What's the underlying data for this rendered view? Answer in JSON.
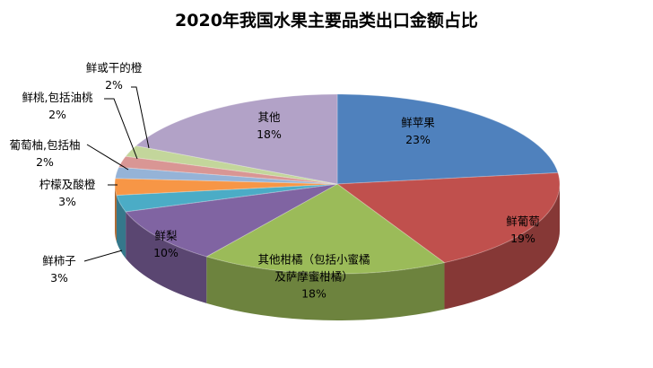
{
  "chart_data": {
    "type": "pie",
    "style": "3d-pie",
    "title": "2020年我国水果主要品类出口金额占比",
    "legend": "none",
    "slices": [
      {
        "name": "鲜苹果",
        "value": 23,
        "label": "23%",
        "color": "#4f81bd"
      },
      {
        "name": "鲜葡萄",
        "value": 19,
        "label": "19%",
        "color": "#c0504d"
      },
      {
        "name": "其他柑橘（包括小蜜橘及萨摩蜜柑橘）",
        "value": 18,
        "label": "18%",
        "color": "#9bbb59"
      },
      {
        "name": "鲜梨",
        "value": 10,
        "label": "10%",
        "color": "#8064a2"
      },
      {
        "name": "鲜柿子",
        "value": 3,
        "label": "3%",
        "color": "#4bacc6"
      },
      {
        "name": "柠檬及酸橙",
        "value": 3,
        "label": "3%",
        "color": "#f79646"
      },
      {
        "name": "葡萄柚,包括柚",
        "value": 2,
        "label": "2%",
        "color": "#95b3d7"
      },
      {
        "name": "鲜桃,包括油桃",
        "value": 2,
        "label": "2%",
        "color": "#d99694"
      },
      {
        "name": "鲜或干的橙",
        "value": 2,
        "label": "2%",
        "color": "#c3d69b"
      },
      {
        "name": "其他",
        "value": 18,
        "label": "18%",
        "color": "#b2a2c7"
      }
    ]
  }
}
